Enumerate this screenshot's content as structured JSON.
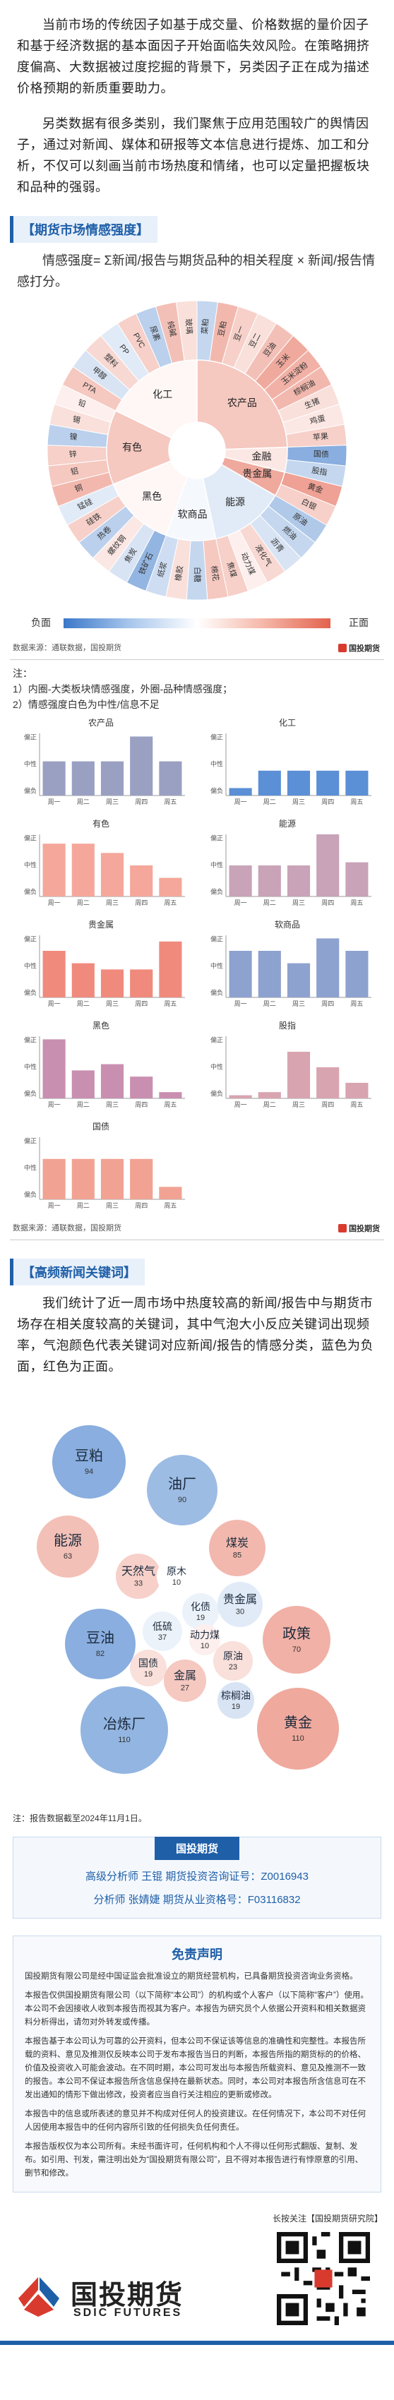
{
  "intro": {
    "p1": "当前市场的传统因子如基于成交量、价格数据的量价因子和基于经济数据的基本面因子开始面临失效风险。在策略拥挤度偏高、大数据被过度挖掘的背景下，另类因子正在成为描述价格预期的新质重要助力。",
    "p2": "另类数据有很多类别，我们聚焦于应用范围较广的舆情因子，通过对新闻、媒体和研报等文本信息进行提炼、加工和分析，不仅可以刻画当前市场热度和情绪，也可以定量把握板块和品种的强弱。"
  },
  "sentiment_section": {
    "title": "【期货市场情感强度】",
    "formula": "情感强度= Σ新闻/报告与期货品种的相关程度 × 新闻/报告情感打分。",
    "legend": {
      "neg": "负面",
      "pos": "正面"
    },
    "source": "数据来源：通联数据，国投期货",
    "logo_text": "国投期货",
    "notes": [
      "注：",
      "1）内圈-大类板块情感强度，外圈-品种情感强度；",
      "2）情感强度白色为中性/信息不足"
    ]
  },
  "sunburst": {
    "inner": [
      {
        "name": "农产品",
        "value": 0.35
      },
      {
        "name": "金融",
        "value": 0.15
      },
      {
        "name": "贵金属",
        "value": 0.55
      },
      {
        "name": "能源",
        "value": -0.15
      },
      {
        "name": "软商品",
        "value": -0.05
      },
      {
        "name": "黑色",
        "value": 0.05
      },
      {
        "name": "有色",
        "value": 0.35
      },
      {
        "name": "化工",
        "value": 0.05
      }
    ],
    "outer": [
      {
        "name": "菜粕",
        "value": -0.3,
        "group": 0
      },
      {
        "name": "豆粕",
        "value": 0.45,
        "group": 0
      },
      {
        "name": "豆一",
        "value": 0.3,
        "group": 0
      },
      {
        "name": "豆二",
        "value": 0.2,
        "group": 0
      },
      {
        "name": "豆油",
        "value": 0.4,
        "group": 0
      },
      {
        "name": "玉米",
        "value": 0.55,
        "group": 0
      },
      {
        "name": "玉米淀粉",
        "value": 0.5,
        "group": 0
      },
      {
        "name": "棕榈油",
        "value": 0.45,
        "group": 0
      },
      {
        "name": "生猪",
        "value": 0.2,
        "group": 0
      },
      {
        "name": "鸡蛋",
        "value": 0.15,
        "group": 0
      },
      {
        "name": "苹果",
        "value": 0.3,
        "group": 0
      },
      {
        "name": "国债",
        "value": -0.6,
        "group": 1
      },
      {
        "name": "股指",
        "value": -0.3,
        "group": 1
      },
      {
        "name": "黄金",
        "value": 0.6,
        "group": 2
      },
      {
        "name": "白银",
        "value": 0.3,
        "group": 2
      },
      {
        "name": "原油",
        "value": -0.4,
        "group": 3
      },
      {
        "name": "燃油",
        "value": -0.3,
        "group": 3
      },
      {
        "name": "沥青",
        "value": -0.2,
        "group": 3
      },
      {
        "name": "液化气",
        "value": 0.25,
        "group": 3
      },
      {
        "name": "动力煤",
        "value": 0.1,
        "group": 3
      },
      {
        "name": "焦煤",
        "value": 0.3,
        "group": 3
      },
      {
        "name": "棉花",
        "value": 0.35,
        "group": 4
      },
      {
        "name": "白糖",
        "value": -0.3,
        "group": 4
      },
      {
        "name": "橡胶",
        "value": 0.2,
        "group": 4
      },
      {
        "name": "纸浆",
        "value": -0.25,
        "group": 4
      },
      {
        "name": "铁矿石",
        "value": -0.55,
        "group": 5
      },
      {
        "name": "焦炭",
        "value": -0.2,
        "group": 5
      },
      {
        "name": "螺纹钢",
        "value": 0.15,
        "group": 5
      },
      {
        "name": "热卷",
        "value": -0.35,
        "group": 5
      },
      {
        "name": "硅铁",
        "value": 0.3,
        "group": 5
      },
      {
        "name": "锰硅",
        "value": -0.15,
        "group": 5
      },
      {
        "name": "铜",
        "value": 0.45,
        "group": 6
      },
      {
        "name": "铝",
        "value": 0.35,
        "group": 6
      },
      {
        "name": "锌",
        "value": 0.3,
        "group": 6
      },
      {
        "name": "镍",
        "value": -0.35,
        "group": 6
      },
      {
        "name": "锡",
        "value": 0.2,
        "group": 6
      },
      {
        "name": "铅",
        "value": 0.1,
        "group": 6
      },
      {
        "name": "PTA",
        "value": 0.35,
        "group": 7
      },
      {
        "name": "甲醇",
        "value": -0.2,
        "group": 7
      },
      {
        "name": "塑料",
        "value": 0.25,
        "group": 7
      },
      {
        "name": "PP",
        "value": -0.15,
        "group": 7
      },
      {
        "name": "PVC",
        "value": 0.3,
        "group": 7
      },
      {
        "name": "尿素",
        "value": -0.35,
        "group": 7
      },
      {
        "name": "纯碱",
        "value": 0.4,
        "group": 7
      },
      {
        "name": "玻璃",
        "value": 0.2,
        "group": 7
      }
    ]
  },
  "chart_data": [
    {
      "type": "bar",
      "title": "农产品",
      "categories": [
        "周一",
        "周二",
        "周三",
        "周四",
        "周五"
      ],
      "values": [
        0.55,
        0.55,
        0.55,
        0.95,
        0.55
      ],
      "ylabels": [
        "偏正",
        "中性",
        "偏负"
      ],
      "color": "#9aa0c2"
    },
    {
      "type": "bar",
      "title": "化工",
      "categories": [
        "周一",
        "周二",
        "周三",
        "周四",
        "周五"
      ],
      "values": [
        0.12,
        0.4,
        0.4,
        0.4,
        0.4
      ],
      "ylabels": [
        "偏正",
        "中性",
        "偏负"
      ],
      "color": "#5b8fd6"
    },
    {
      "type": "bar",
      "title": "有色",
      "categories": [
        "周一",
        "周二",
        "周三",
        "周四",
        "周五"
      ],
      "values": [
        0.85,
        0.85,
        0.7,
        0.5,
        0.3
      ],
      "ylabels": [
        "偏正",
        "中性",
        "偏负"
      ],
      "color": "#f4a79a"
    },
    {
      "type": "bar",
      "title": "能源",
      "categories": [
        "周一",
        "周二",
        "周三",
        "周四",
        "周五"
      ],
      "values": [
        0.5,
        0.5,
        0.5,
        1.0,
        0.55
      ],
      "ylabels": [
        "偏正",
        "中性",
        "偏负"
      ],
      "color": "#c9a3b8"
    },
    {
      "type": "bar",
      "title": "贵金属",
      "categories": [
        "周一",
        "周二",
        "周三",
        "周四",
        "周五"
      ],
      "values": [
        0.75,
        0.55,
        0.45,
        0.45,
        0.9
      ],
      "ylabels": [
        "偏正",
        "中性",
        "偏负"
      ],
      "color": "#f08a7d"
    },
    {
      "type": "bar",
      "title": "软商品",
      "categories": [
        "周一",
        "周二",
        "周三",
        "周四",
        "周五"
      ],
      "values": [
        0.75,
        0.75,
        0.55,
        0.95,
        0.75
      ],
      "ylabels": [
        "偏正",
        "中性",
        "偏负"
      ],
      "color": "#8ea2cf"
    },
    {
      "type": "bar",
      "title": "黑色",
      "categories": [
        "周一",
        "周二",
        "周三",
        "周四",
        "周五"
      ],
      "values": [
        0.95,
        0.45,
        0.55,
        0.35,
        0.1
      ],
      "ylabels": [
        "偏正",
        "中性",
        "偏负"
      ],
      "color": "#c98fb0"
    },
    {
      "type": "bar",
      "title": "股指",
      "categories": [
        "周一",
        "周二",
        "周三",
        "周四",
        "周五"
      ],
      "values": [
        0.05,
        0.1,
        0.75,
        0.5,
        0.25
      ],
      "ylabels": [
        "偏正",
        "中性",
        "偏负"
      ],
      "color": "#d8a4b0"
    },
    {
      "type": "bar",
      "title": "国债",
      "categories": [
        "周一",
        "周二",
        "周三",
        "周四",
        "周五"
      ],
      "values": [
        0.65,
        0.65,
        0.65,
        0.65,
        0.2
      ],
      "ylabels": [
        "偏正",
        "中性",
        "偏负"
      ],
      "color": "#f1a293"
    }
  ],
  "bar_panels_source": "数据来源：通联数据，国投期货",
  "keywords_section": {
    "title": "【高频新闻关键词】",
    "text": "我们统计了近一周市场中热度较高的新闻/报告中与期货市场存在相关度较高的关键词，其中气泡大小反应关键词出现频率，气泡颜色代表关键词对应新闻/报告的情感分类，蓝色为负面，红色为正面。",
    "note": "注：报告数据截至2024年11月1日。"
  },
  "bubbles": [
    {
      "word": "豆粕",
      "count": "94",
      "sentiment": -0.6
    },
    {
      "word": "油厂",
      "count": "90",
      "sentiment": -0.5
    },
    {
      "word": "能源",
      "count": "63",
      "sentiment": 0.4
    },
    {
      "word": "煤炭",
      "count": "85",
      "sentiment": 0.45
    },
    {
      "word": "天然气",
      "count": "33",
      "sentiment": 0.3
    },
    {
      "word": "原木",
      "count": "10",
      "sentiment": 0.0
    },
    {
      "word": "化债",
      "count": "19",
      "sentiment": -0.1
    },
    {
      "word": "贵金属",
      "count": "30",
      "sentiment": -0.15
    },
    {
      "word": "豆油",
      "count": "82",
      "sentiment": -0.6
    },
    {
      "word": "低硫",
      "count": "37",
      "sentiment": -0.1
    },
    {
      "word": "动力煤",
      "count": "10",
      "sentiment": 0.1
    },
    {
      "word": "政策",
      "count": "70",
      "sentiment": 0.5
    },
    {
      "word": "国债",
      "count": "19",
      "sentiment": 0.2
    },
    {
      "word": "金属",
      "count": "27",
      "sentiment": 0.35
    },
    {
      "word": "原油",
      "count": "23",
      "sentiment": 0.2
    },
    {
      "word": "冶炼厂",
      "count": "110",
      "sentiment": -0.55
    },
    {
      "word": "棕榈油",
      "count": "19",
      "sentiment": -0.2
    },
    {
      "word": "黄金",
      "count": "110",
      "sentiment": 0.55
    }
  ],
  "analysts": {
    "head": "国投期货",
    "line1": "高级分析师 王锟 期货投资咨询证号：Z0016943",
    "line2": "分析师 张婧婕 期货从业资格号：F03116832"
  },
  "disclaimer": {
    "title": "免责声明",
    "paras": [
      "国投期货有限公司是经中国证监会批准设立的期货经营机构，已具备期货投资咨询业务资格。",
      "本报告仅供国投期货有限公司（以下简称“本公司”）的机构或个人客户（以下简称“客户”）使用。本公司不会因接收人收到本报告而视其为客户。本报告为研究员个人依据公开资料和相关数据资料分析得出，请勿对外转发或传播。",
      "本报告基于本公司认为可靠的公开资料，但本公司不保证该等信息的准确性和完整性。本报告所载的资料、意见及推测仅反映本公司于发布本报告当日的判断，本报告所指的期货标的的价格、价值及投资收入可能会波动。在不同时期，本公司可发出与本报告所载资料、意见及推测不一致的报告。本公司不保证本报告所含信息保持在最新状态。同时，本公司对本报告所含信息可在不发出通知的情形下做出修改，投资者应当自行关注相应的更新或修改。",
      "本报告中的信息或所表述的意见并不构成对任何人的投资建议。在任何情况下，本公司不对任何人因使用本报告中的任何内容所引致的任何损失负任何责任。",
      "本报告版权仅为本公司所有。未经书面许可，任何机构和个人不得以任何形式翻版、复制、发布。如引用、刊发，需注明出处为“国投期货有限公司”，且不得对本报告进行有悖原意的引用、删节和修改。"
    ]
  },
  "footer": {
    "follow": "长按关注【国投期货研究院】",
    "logo_cn": "国投期货",
    "logo_en": "SDIC FUTURES"
  },
  "colors": {
    "accent": "#1f5fa8",
    "neg": "#3a78c9",
    "pos": "#e2624c"
  }
}
